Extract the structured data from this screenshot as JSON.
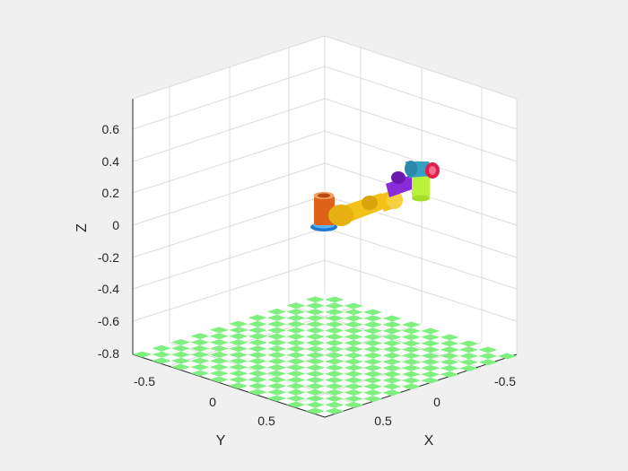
{
  "figure": {
    "background": "#f0f0f0",
    "axes_background": "#ffffff",
    "grid_color": "#dcdcdc",
    "axis_color": "#262626",
    "floor_color": "#7ff07f"
  },
  "axes": {
    "x_label": "X",
    "y_label": "Y",
    "z_label": "Z",
    "x_ticks": [
      "-0.5",
      "0",
      "0.5"
    ],
    "y_ticks": [
      "-0.5",
      "0",
      "0.5"
    ],
    "z_ticks": [
      "0.6",
      "0.4",
      "0.2",
      "0",
      "-0.2",
      "-0.4",
      "-0.6",
      "-0.8"
    ]
  },
  "robot": {
    "link_colors": [
      "#1e78d2",
      "#e0621a",
      "#f2c21a",
      "#f2c21a",
      "#8a2ad8",
      "#b9f23a",
      "#33a0c4",
      "#e0204a"
    ]
  }
}
